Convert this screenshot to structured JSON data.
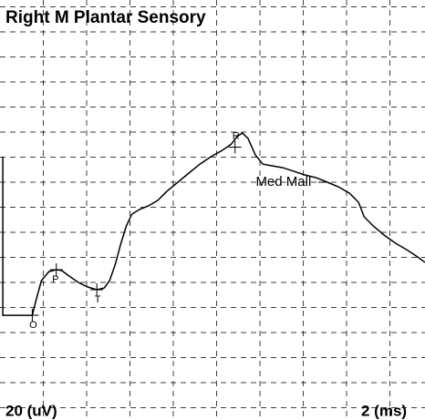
{
  "chart_data": {
    "type": "line",
    "title": "Right M Plantar Sensory",
    "scale_y_label": "20 (uV)",
    "scale_x_label": "2 (ms)",
    "x": [
      0.13,
      0.13,
      1.49,
      1.66,
      1.91,
      2.26,
      2.6,
      2.85,
      3.19,
      3.62,
      4.04,
      4.47,
      4.81,
      5.06,
      5.32,
      5.57,
      5.83,
      6.09,
      6.43,
      6.85,
      7.28,
      7.7,
      8.21,
      8.72,
      9.23,
      9.74,
      10.26,
      10.68,
      10.94,
      11.19,
      11.45,
      11.79,
      12.13,
      12.55,
      13.06,
      13.57,
      14.09,
      14.6,
      15.11,
      15.62,
      16.13,
      16.55,
      16.81,
      17.23,
      17.74,
      18.26,
      18.77,
      19.28,
      19.62
    ],
    "series": [
      {
        "name": "Med Mall",
        "color": "#000000",
        "values": [
          140.4,
          13.8,
          13.8,
          25.5,
          41.5,
          48.7,
          50.2,
          49.5,
          45.1,
          40,
          36.4,
          34.2,
          35.6,
          41.5,
          54.5,
          70.5,
          85.1,
          94.5,
          98.2,
          101.1,
          105.5,
          112.7,
          120,
          127.3,
          134.5,
          140.4,
          145.5,
          150.5,
          156.4,
          159.3,
          154.9,
          141.8,
          134.5,
          133.1,
          131.6,
          128.7,
          125.8,
          123.6,
          120,
          116.4,
          111.3,
          104,
          92.4,
          85.1,
          77.8,
          71.3,
          66.2,
          60.4,
          56
        ]
      }
    ],
    "markers": [
      {
        "label": "O",
        "x": 1.49,
        "y": 13.8
      },
      {
        "label": "P",
        "x": 2.6,
        "y": 50.2
      },
      {
        "label": "T",
        "x": 4.47,
        "y": 34.2
      },
      {
        "label": "R",
        "x": 10.85,
        "y": 148
      }
    ],
    "xlim": [
      0,
      19.62
    ],
    "ylim": [
      -69.8,
      265.5
    ],
    "xticks": [
      2,
      4,
      6,
      8,
      10,
      12,
      14,
      16,
      18
    ],
    "yticks": [
      -60,
      -40,
      -20,
      0,
      20,
      40,
      60,
      80,
      100,
      120,
      140,
      160,
      180,
      200,
      220,
      240,
      260
    ],
    "grid": true
  }
}
